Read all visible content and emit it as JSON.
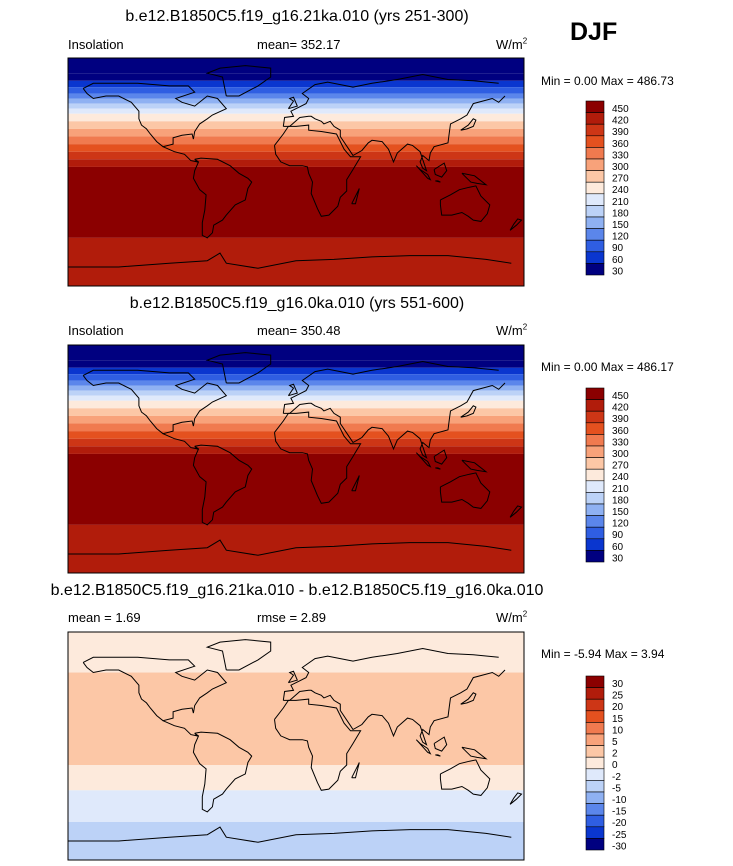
{
  "season": "DJF",
  "chart_data": [
    {
      "type": "heatmap",
      "title": "b.e12.B1850C5.f19_g16.21ka.010 (yrs 251-300)",
      "left_label": "Insolation",
      "center_label": "mean= 352.17",
      "units": "W/m",
      "units_exp": "2",
      "min_max": "Min =   0.00 Max = 486.73",
      "levels": [
        "450",
        "420",
        "390",
        "360",
        "330",
        "300",
        "270",
        "240",
        "210",
        "180",
        "150",
        "120",
        "90",
        "60",
        "30"
      ],
      "colors": [
        "#8b0000",
        "#b11c0b",
        "#cd3616",
        "#e4511f",
        "#f07a4f",
        "#f8a27a",
        "#fcc7a6",
        "#fdeadc",
        "#dfe9fb",
        "#bcd2f7",
        "#8fb1f2",
        "#5b86eb",
        "#2f5ee2",
        "#0a36cf",
        "#000080"
      ],
      "bands": [
        {
          "lat_top": 90,
          "lat_bottom": 78,
          "value": 0
        },
        {
          "lat_top": 78,
          "lat_bottom": 72,
          "value": 40
        },
        {
          "lat_top": 72,
          "lat_bottom": 67,
          "value": 70
        },
        {
          "lat_top": 67,
          "lat_bottom": 62,
          "value": 100
        },
        {
          "lat_top": 62,
          "lat_bottom": 58,
          "value": 130
        },
        {
          "lat_top": 58,
          "lat_bottom": 54,
          "value": 160
        },
        {
          "lat_top": 54,
          "lat_bottom": 50,
          "value": 190
        },
        {
          "lat_top": 50,
          "lat_bottom": 46,
          "value": 220
        },
        {
          "lat_top": 46,
          "lat_bottom": 40,
          "value": 250
        },
        {
          "lat_top": 40,
          "lat_bottom": 34,
          "value": 280
        },
        {
          "lat_top": 34,
          "lat_bottom": 28,
          "value": 310
        },
        {
          "lat_top": 28,
          "lat_bottom": 22,
          "value": 340
        },
        {
          "lat_top": 22,
          "lat_bottom": 16,
          "value": 370
        },
        {
          "lat_top": 16,
          "lat_bottom": 10,
          "value": 400
        },
        {
          "lat_top": 10,
          "lat_bottom": 4,
          "value": 430
        },
        {
          "lat_top": 4,
          "lat_bottom": -52,
          "value": 460
        },
        {
          "lat_top": -52,
          "lat_bottom": -90,
          "value": 440
        }
      ]
    },
    {
      "type": "heatmap",
      "title": "b.e12.B1850C5.f19_g16.0ka.010 (yrs 551-600)",
      "left_label": "Insolation",
      "center_label": "mean= 350.48",
      "units": "W/m",
      "units_exp": "2",
      "min_max": "Min =   0.00 Max = 486.17",
      "levels": [
        "450",
        "420",
        "390",
        "360",
        "330",
        "300",
        "270",
        "240",
        "210",
        "180",
        "150",
        "120",
        "90",
        "60",
        "30"
      ],
      "colors": [
        "#8b0000",
        "#b11c0b",
        "#cd3616",
        "#e4511f",
        "#f07a4f",
        "#f8a27a",
        "#fcc7a6",
        "#fdeadc",
        "#dfe9fb",
        "#bcd2f7",
        "#8fb1f2",
        "#5b86eb",
        "#2f5ee2",
        "#0a36cf",
        "#000080"
      ],
      "bands": [
        {
          "lat_top": 90,
          "lat_bottom": 78,
          "value": 0
        },
        {
          "lat_top": 78,
          "lat_bottom": 72,
          "value": 40
        },
        {
          "lat_top": 72,
          "lat_bottom": 67,
          "value": 70
        },
        {
          "lat_top": 67,
          "lat_bottom": 62,
          "value": 100
        },
        {
          "lat_top": 62,
          "lat_bottom": 58,
          "value": 130
        },
        {
          "lat_top": 58,
          "lat_bottom": 54,
          "value": 160
        },
        {
          "lat_top": 54,
          "lat_bottom": 50,
          "value": 190
        },
        {
          "lat_top": 50,
          "lat_bottom": 46,
          "value": 220
        },
        {
          "lat_top": 46,
          "lat_bottom": 40,
          "value": 250
        },
        {
          "lat_top": 40,
          "lat_bottom": 34,
          "value": 280
        },
        {
          "lat_top": 34,
          "lat_bottom": 28,
          "value": 310
        },
        {
          "lat_top": 28,
          "lat_bottom": 22,
          "value": 340
        },
        {
          "lat_top": 22,
          "lat_bottom": 16,
          "value": 370
        },
        {
          "lat_top": 16,
          "lat_bottom": 10,
          "value": 400
        },
        {
          "lat_top": 10,
          "lat_bottom": 4,
          "value": 430
        },
        {
          "lat_top": 4,
          "lat_bottom": -52,
          "value": 460
        },
        {
          "lat_top": -52,
          "lat_bottom": -90,
          "value": 440
        }
      ]
    },
    {
      "type": "heatmap",
      "title": "b.e12.B1850C5.f19_g16.21ka.010 - b.e12.B1850C5.f19_g16.0ka.010",
      "left_label": "mean =   1.69",
      "center_label": "rmse =   2.89",
      "units": "W/m",
      "units_exp": "2",
      "min_max": "Min =  -5.94 Max =   3.94",
      "levels": [
        "30",
        "25",
        "20",
        "15",
        "10",
        "5",
        "2",
        "0",
        "-2",
        "-5",
        "-10",
        "-15",
        "-20",
        "-25",
        "-30"
      ],
      "colors": [
        "#8b0000",
        "#b11c0b",
        "#cd3616",
        "#e4511f",
        "#f07a4f",
        "#f8a27a",
        "#fcc7a6",
        "#fdeadc",
        "#dfe9fb",
        "#bcd2f7",
        "#8fb1f2",
        "#5b86eb",
        "#2f5ee2",
        "#0a36cf",
        "#000080"
      ],
      "bands": [
        {
          "lat_top": 90,
          "lat_bottom": 58,
          "value": 1
        },
        {
          "lat_top": 58,
          "lat_bottom": -15,
          "value": 3
        },
        {
          "lat_top": -15,
          "lat_bottom": -35,
          "value": 1
        },
        {
          "lat_top": -35,
          "lat_bottom": -60,
          "value": -1
        },
        {
          "lat_top": -60,
          "lat_bottom": -90,
          "value": -4
        }
      ]
    }
  ]
}
